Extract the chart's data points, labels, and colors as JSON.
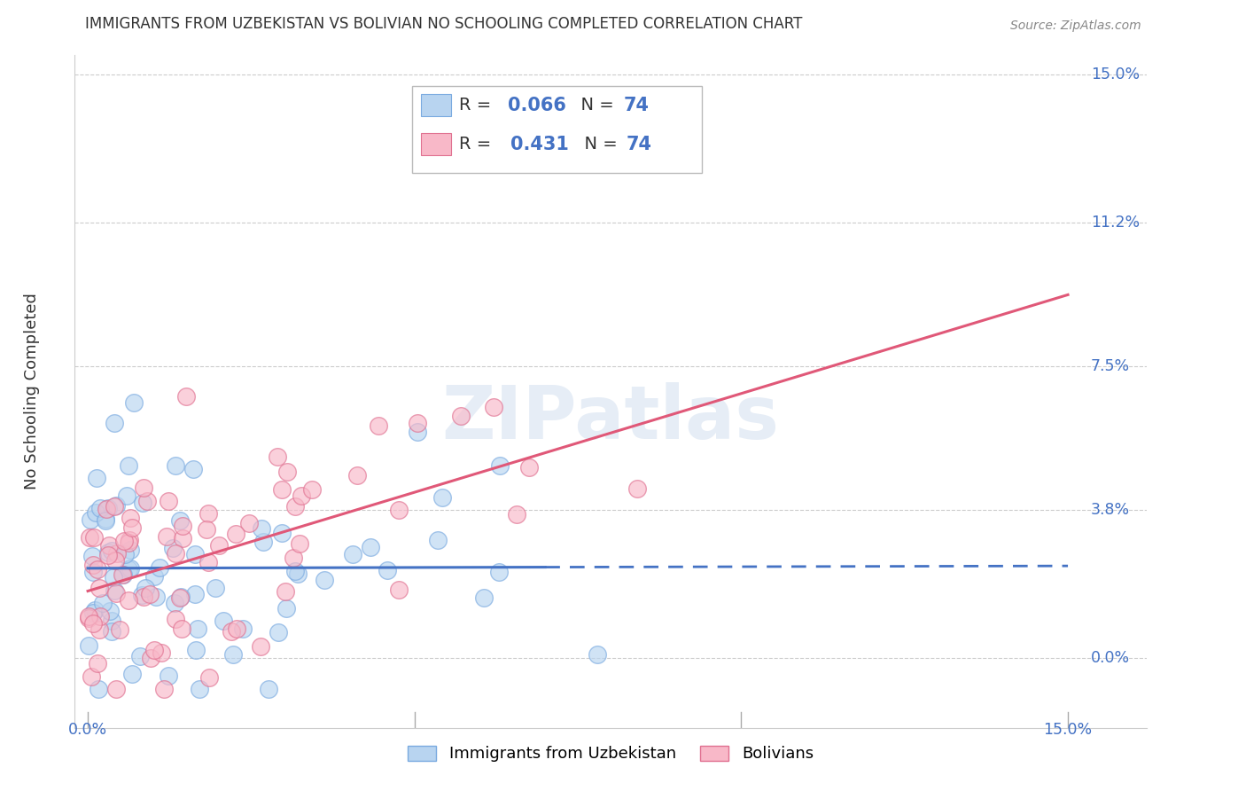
{
  "title": "IMMIGRANTS FROM UZBEKISTAN VS BOLIVIAN NO SCHOOLING COMPLETED CORRELATION CHART",
  "source": "Source: ZipAtlas.com",
  "ylabel": "No Schooling Completed",
  "ytick_labels": [
    "0.0%",
    "3.8%",
    "7.5%",
    "11.2%",
    "15.0%"
  ],
  "ytick_values": [
    0.0,
    3.8,
    7.5,
    11.2,
    15.0
  ],
  "xlim": [
    0.0,
    15.0
  ],
  "ylim": [
    0.0,
    15.0
  ],
  "legend_entries": [
    {
      "label_r": "R = ",
      "val_r": "0.066",
      "label_n": "  N = ",
      "val_n": "74",
      "color": "#aacfee"
    },
    {
      "label_r": "R =  ",
      "val_r": "0.431",
      "label_n": "  N = ",
      "val_n": "74",
      "color": "#f4b8c8"
    }
  ],
  "series": [
    {
      "name": "Immigrants from Uzbekistan",
      "R": 0.066,
      "N": 74,
      "color_face": "#b8d4f0",
      "color_edge": "#7aaae0",
      "line_color": "#4472c4",
      "line_style": "solid",
      "line_dash_start": 7.0,
      "seed": 42
    },
    {
      "name": "Bolivians",
      "R": 0.431,
      "N": 74,
      "color_face": "#f8b8c8",
      "color_edge": "#e07090",
      "line_color": "#e05878",
      "line_style": "solid",
      "seed": 99
    }
  ],
  "watermark": "ZIPatlas",
  "background_color": "#ffffff",
  "grid_color": "#cccccc",
  "title_color": "#333333",
  "axis_label_color": "#4472c4",
  "text_color_dark": "#333333",
  "text_color_blue": "#4472c4"
}
